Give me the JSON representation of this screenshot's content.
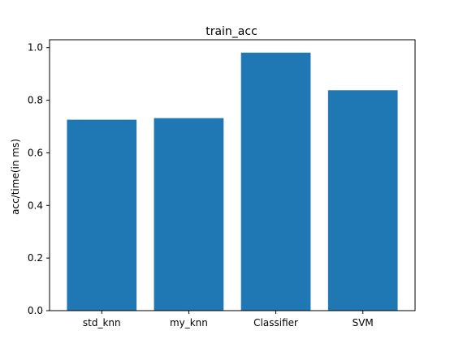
{
  "chart_data": {
    "type": "bar",
    "title": "train_acc",
    "xlabel": "",
    "ylabel": "acc/time(in ms)",
    "categories": [
      "std_knn",
      "my_knn",
      "Classifier",
      "SVM"
    ],
    "values": [
      0.726,
      0.732,
      0.981,
      0.838
    ],
    "ylim": [
      0,
      1.03
    ],
    "yticks": [
      0.0,
      0.2,
      0.4,
      0.6,
      0.8,
      1.0
    ],
    "ytick_labels": [
      "0.0",
      "0.2",
      "0.4",
      "0.6",
      "0.8",
      "1.0"
    ],
    "bar_color": "#1f77b4",
    "grid": false,
    "legend": "none"
  }
}
